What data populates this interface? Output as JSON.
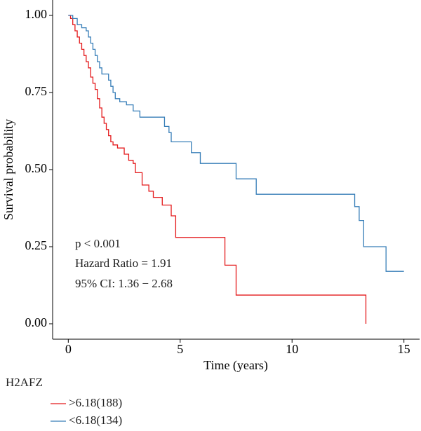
{
  "chart_data": {
    "type": "step",
    "xlabel": "Time (years)",
    "ylabel": "Survival probability",
    "xlim": [
      -0.7,
      15.7
    ],
    "ylim": [
      -0.05,
      1.05
    ],
    "xticks": [
      0,
      5,
      10,
      15
    ],
    "yticks": [
      {
        "value": 0,
        "label": "0.00"
      },
      {
        "value": 0.25,
        "label": "0.25"
      },
      {
        "value": 0.5,
        "label": "0.50"
      },
      {
        "value": 0.75,
        "label": "0.75"
      },
      {
        "value": 1,
        "label": "1.00"
      }
    ],
    "annotations": [
      "p < 0.001",
      "Hazard Ratio = 1.91",
      "95% CI: 1.36 − 2.68"
    ],
    "legend_title": "H2AFZ",
    "series": [
      {
        "name": ">6.18(188)",
        "color": "#e41a1c",
        "x": [
          0,
          0.1,
          0.2,
          0.3,
          0.4,
          0.5,
          0.6,
          0.7,
          0.8,
          0.9,
          1.0,
          1.1,
          1.2,
          1.3,
          1.4,
          1.5,
          1.6,
          1.7,
          1.8,
          1.9,
          2.0,
          2.2,
          2.5,
          2.7,
          2.9,
          3.0,
          3.3,
          3.6,
          3.8,
          4.2,
          4.6,
          4.8,
          7.0,
          7.5,
          13.3
        ],
        "values": [
          1,
          0.99,
          0.97,
          0.95,
          0.93,
          0.91,
          0.89,
          0.87,
          0.85,
          0.83,
          0.8,
          0.78,
          0.76,
          0.73,
          0.7,
          0.67,
          0.65,
          0.63,
          0.61,
          0.59,
          0.58,
          0.57,
          0.55,
          0.53,
          0.52,
          0.49,
          0.45,
          0.43,
          0.41,
          0.385,
          0.35,
          0.28,
          0.19,
          0.093,
          0
        ]
      },
      {
        "name": "<6.18(134)",
        "color": "#377eb8",
        "x": [
          0,
          0.2,
          0.4,
          0.6,
          0.8,
          0.9,
          1.0,
          1.1,
          1.2,
          1.3,
          1.4,
          1.5,
          1.8,
          1.9,
          2.0,
          2.1,
          2.3,
          2.6,
          2.9,
          3.2,
          4.3,
          4.5,
          4.6,
          5.5,
          5.9,
          7.5,
          8.4,
          12.8,
          13.0,
          13.2,
          14.2,
          15.0
        ],
        "values": [
          1,
          0.99,
          0.97,
          0.96,
          0.95,
          0.93,
          0.91,
          0.89,
          0.87,
          0.85,
          0.83,
          0.81,
          0.79,
          0.77,
          0.75,
          0.73,
          0.72,
          0.71,
          0.69,
          0.67,
          0.64,
          0.62,
          0.59,
          0.555,
          0.52,
          0.47,
          0.42,
          0.38,
          0.335,
          0.25,
          0.17,
          0.17
        ]
      }
    ]
  }
}
